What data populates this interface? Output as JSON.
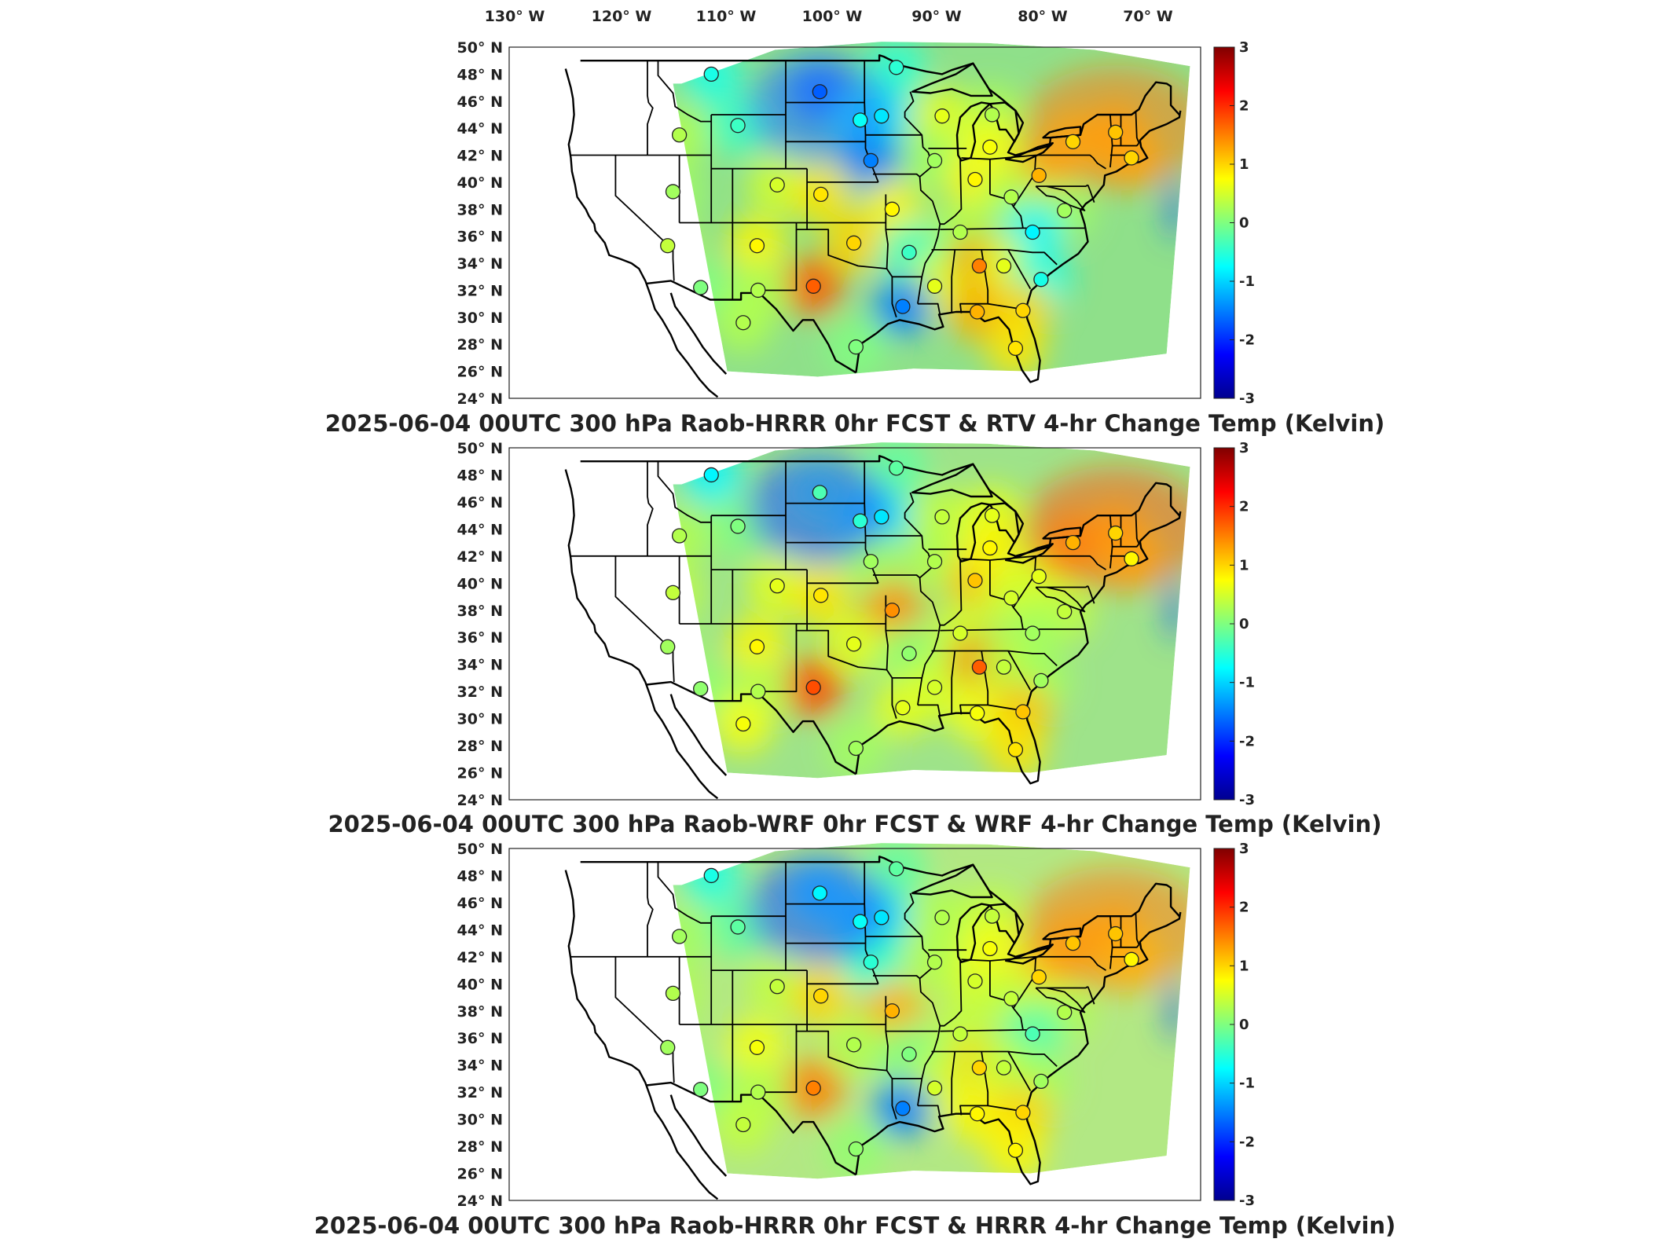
{
  "map": {
    "lon_labels": [
      "130° W",
      "120° W",
      "110° W",
      "100° W",
      "90° W",
      "80° W",
      "70° W"
    ],
    "lat_labels": [
      "50° N",
      "48° N",
      "46° N",
      "44° N",
      "42° N",
      "40° N",
      "38° N",
      "36° N",
      "34° N",
      "32° N",
      "30° N",
      "28° N",
      "26° N",
      "24° N"
    ],
    "extent": {
      "lon_min": -130,
      "lon_max": -65,
      "lat_min": 24,
      "lat_max": 50
    }
  },
  "colorbar": {
    "range": [
      -3,
      3
    ],
    "ticks": [
      "3",
      "2",
      "1",
      "0",
      "-1",
      "-2",
      "-3"
    ],
    "colormap": "jet",
    "colors": [
      "#00008f",
      "#0000ff",
      "#00ffff",
      "#ffff00",
      "#ff0000",
      "#800000"
    ]
  },
  "panels": [
    {
      "title": "2025-06-04 00UTC 300 hPa Raob-HRRR 0hr FCST & RTV 4-hr Change Temp (Kelvin)",
      "field_description_colors": {
        "west_background": "#8fe08a",
        "north_central_low": "#2a7bff",
        "northeast_high": "#ff7a1a"
      },
      "stations": [
        {
          "lon": -111.0,
          "lat": 48.0,
          "value": -0.6
        },
        {
          "lon": -100.8,
          "lat": 46.7,
          "value": -1.7
        },
        {
          "lon": -93.6,
          "lat": 48.5,
          "value": -0.5
        },
        {
          "lon": -97.0,
          "lat": 44.6,
          "value": -0.7
        },
        {
          "lon": -108.5,
          "lat": 44.2,
          "value": -0.4
        },
        {
          "lon": -114.0,
          "lat": 43.5,
          "value": 0.3
        },
        {
          "lon": -95.0,
          "lat": 44.9,
          "value": -0.9
        },
        {
          "lon": -89.3,
          "lat": 44.9,
          "value": 0.6
        },
        {
          "lon": -84.6,
          "lat": 45.0,
          "value": 0.3
        },
        {
          "lon": -96.0,
          "lat": 41.6,
          "value": -1.5
        },
        {
          "lon": -90.0,
          "lat": 41.6,
          "value": 0.2
        },
        {
          "lon": -86.2,
          "lat": 40.2,
          "value": 0.8
        },
        {
          "lon": -84.8,
          "lat": 42.6,
          "value": 0.7
        },
        {
          "lon": -80.2,
          "lat": 40.5,
          "value": 1.2
        },
        {
          "lon": -77.0,
          "lat": 43.0,
          "value": 1.0
        },
        {
          "lon": -73.0,
          "lat": 43.7,
          "value": 1.1
        },
        {
          "lon": -71.5,
          "lat": 41.8,
          "value": 1.0
        },
        {
          "lon": -114.6,
          "lat": 39.3,
          "value": 0.2
        },
        {
          "lon": -104.8,
          "lat": 39.8,
          "value": 0.5
        },
        {
          "lon": -100.7,
          "lat": 39.1,
          "value": 0.9
        },
        {
          "lon": -94.0,
          "lat": 38.0,
          "value": 0.8
        },
        {
          "lon": -82.8,
          "lat": 38.9,
          "value": 0.3
        },
        {
          "lon": -77.8,
          "lat": 37.9,
          "value": 0.2
        },
        {
          "lon": -80.8,
          "lat": 36.3,
          "value": -0.8
        },
        {
          "lon": -87.6,
          "lat": 36.3,
          "value": 0.3
        },
        {
          "lon": -115.1,
          "lat": 35.3,
          "value": 0.4
        },
        {
          "lon": -106.7,
          "lat": 35.3,
          "value": 0.8
        },
        {
          "lon": -97.6,
          "lat": 35.5,
          "value": 1.0
        },
        {
          "lon": -92.4,
          "lat": 34.8,
          "value": -0.4
        },
        {
          "lon": -85.8,
          "lat": 33.8,
          "value": 1.5
        },
        {
          "lon": -83.5,
          "lat": 33.8,
          "value": 0.6
        },
        {
          "lon": -80.0,
          "lat": 32.8,
          "value": -0.6
        },
        {
          "lon": -101.4,
          "lat": 32.3,
          "value": 1.7
        },
        {
          "lon": -106.6,
          "lat": 32.0,
          "value": 0.3
        },
        {
          "lon": -112.0,
          "lat": 32.2,
          "value": 0.0
        },
        {
          "lon": -90.0,
          "lat": 32.3,
          "value": 0.6
        },
        {
          "lon": -93.0,
          "lat": 30.8,
          "value": -1.5
        },
        {
          "lon": -86.0,
          "lat": 30.4,
          "value": 1.2
        },
        {
          "lon": -81.7,
          "lat": 30.5,
          "value": 1.0
        },
        {
          "lon": -108.0,
          "lat": 29.6,
          "value": 0.3
        },
        {
          "lon": -97.4,
          "lat": 27.8,
          "value": 0.0
        },
        {
          "lon": -82.4,
          "lat": 27.7,
          "value": 0.9
        }
      ]
    },
    {
      "title": "2025-06-04 00UTC 300 hPa Raob-WRF 0hr FCST & WRF 4-hr Change Temp (Kelvin)",
      "field_description_colors": {
        "west_background": "#9ee38a",
        "north_central_low": "#1f57ff",
        "northeast_high": "#ff5a12"
      },
      "stations": [
        {
          "lon": -111.0,
          "lat": 48.0,
          "value": -0.8
        },
        {
          "lon": -100.8,
          "lat": 46.7,
          "value": -0.3
        },
        {
          "lon": -93.6,
          "lat": 48.5,
          "value": -0.2
        },
        {
          "lon": -97.0,
          "lat": 44.6,
          "value": -0.5
        },
        {
          "lon": -108.5,
          "lat": 44.2,
          "value": 0.0
        },
        {
          "lon": -114.0,
          "lat": 43.5,
          "value": 0.3
        },
        {
          "lon": -95.0,
          "lat": 44.9,
          "value": -0.9
        },
        {
          "lon": -89.3,
          "lat": 44.9,
          "value": 0.4
        },
        {
          "lon": -84.6,
          "lat": 45.0,
          "value": 0.6
        },
        {
          "lon": -96.0,
          "lat": 41.6,
          "value": 0.2
        },
        {
          "lon": -90.0,
          "lat": 41.6,
          "value": 0.3
        },
        {
          "lon": -86.2,
          "lat": 40.2,
          "value": 1.1
        },
        {
          "lon": -84.8,
          "lat": 42.6,
          "value": 0.8
        },
        {
          "lon": -80.2,
          "lat": 40.5,
          "value": 0.6
        },
        {
          "lon": -77.0,
          "lat": 43.0,
          "value": 1.2
        },
        {
          "lon": -73.0,
          "lat": 43.7,
          "value": 1.0
        },
        {
          "lon": -71.5,
          "lat": 41.8,
          "value": 0.8
        },
        {
          "lon": -114.6,
          "lat": 39.3,
          "value": 0.4
        },
        {
          "lon": -104.8,
          "lat": 39.8,
          "value": 0.6
        },
        {
          "lon": -100.7,
          "lat": 39.1,
          "value": 0.9
        },
        {
          "lon": -94.0,
          "lat": 38.0,
          "value": 1.4
        },
        {
          "lon": -82.8,
          "lat": 38.9,
          "value": 0.5
        },
        {
          "lon": -77.8,
          "lat": 37.9,
          "value": 0.4
        },
        {
          "lon": -80.8,
          "lat": 36.3,
          "value": 0.2
        },
        {
          "lon": -87.6,
          "lat": 36.3,
          "value": 0.5
        },
        {
          "lon": -115.1,
          "lat": 35.3,
          "value": 0.2
        },
        {
          "lon": -106.7,
          "lat": 35.3,
          "value": 0.8
        },
        {
          "lon": -97.6,
          "lat": 35.5,
          "value": 0.6
        },
        {
          "lon": -92.4,
          "lat": 34.8,
          "value": 0.1
        },
        {
          "lon": -85.8,
          "lat": 33.8,
          "value": 1.7
        },
        {
          "lon": -83.5,
          "lat": 33.8,
          "value": 0.4
        },
        {
          "lon": -80.0,
          "lat": 32.8,
          "value": 0.2
        },
        {
          "lon": -101.4,
          "lat": 32.3,
          "value": 1.8
        },
        {
          "lon": -106.6,
          "lat": 32.0,
          "value": 0.3
        },
        {
          "lon": -112.0,
          "lat": 32.2,
          "value": 0.1
        },
        {
          "lon": -90.0,
          "lat": 32.3,
          "value": 0.5
        },
        {
          "lon": -93.0,
          "lat": 30.8,
          "value": 0.6
        },
        {
          "lon": -86.0,
          "lat": 30.4,
          "value": 0.7
        },
        {
          "lon": -81.7,
          "lat": 30.5,
          "value": 1.1
        },
        {
          "lon": -108.0,
          "lat": 29.6,
          "value": 0.7
        },
        {
          "lon": -97.4,
          "lat": 27.8,
          "value": 0.2
        },
        {
          "lon": -82.4,
          "lat": 27.7,
          "value": 0.9
        }
      ]
    },
    {
      "title": "2025-06-04 00UTC 300 hPa Raob-HRRR 0hr FCST & HRRR 4-hr Change Temp (Kelvin)",
      "field_description_colors": {
        "west_background": "#b2e884",
        "north_central_low": "#1f57ff",
        "northeast_high": "#ff7a1a"
      },
      "stations": [
        {
          "lon": -111.0,
          "lat": 48.0,
          "value": -0.6
        },
        {
          "lon": -100.8,
          "lat": 46.7,
          "value": -0.8
        },
        {
          "lon": -93.6,
          "lat": 48.5,
          "value": -0.2
        },
        {
          "lon": -97.0,
          "lat": 44.6,
          "value": -0.7
        },
        {
          "lon": -108.5,
          "lat": 44.2,
          "value": -0.2
        },
        {
          "lon": -114.0,
          "lat": 43.5,
          "value": 0.2
        },
        {
          "lon": -95.0,
          "lat": 44.9,
          "value": -0.9
        },
        {
          "lon": -89.3,
          "lat": 44.9,
          "value": 0.3
        },
        {
          "lon": -84.6,
          "lat": 45.0,
          "value": 0.4
        },
        {
          "lon": -96.0,
          "lat": 41.6,
          "value": -0.5
        },
        {
          "lon": -90.0,
          "lat": 41.6,
          "value": 0.3
        },
        {
          "lon": -86.2,
          "lat": 40.2,
          "value": 0.5
        },
        {
          "lon": -84.8,
          "lat": 42.6,
          "value": 0.7
        },
        {
          "lon": -80.2,
          "lat": 40.5,
          "value": 1.0
        },
        {
          "lon": -77.0,
          "lat": 43.0,
          "value": 1.1
        },
        {
          "lon": -73.0,
          "lat": 43.7,
          "value": 1.1
        },
        {
          "lon": -71.5,
          "lat": 41.8,
          "value": 0.8
        },
        {
          "lon": -114.6,
          "lat": 39.3,
          "value": 0.3
        },
        {
          "lon": -104.8,
          "lat": 39.8,
          "value": 0.4
        },
        {
          "lon": -100.7,
          "lat": 39.1,
          "value": 1.0
        },
        {
          "lon": -94.0,
          "lat": 38.0,
          "value": 1.2
        },
        {
          "lon": -82.8,
          "lat": 38.9,
          "value": 0.4
        },
        {
          "lon": -77.8,
          "lat": 37.9,
          "value": 0.3
        },
        {
          "lon": -80.8,
          "lat": 36.3,
          "value": -0.3
        },
        {
          "lon": -87.6,
          "lat": 36.3,
          "value": 0.4
        },
        {
          "lon": -115.1,
          "lat": 35.3,
          "value": 0.2
        },
        {
          "lon": -106.7,
          "lat": 35.3,
          "value": 0.7
        },
        {
          "lon": -97.6,
          "lat": 35.5,
          "value": 0.3
        },
        {
          "lon": -92.4,
          "lat": 34.8,
          "value": 0.0
        },
        {
          "lon": -85.8,
          "lat": 33.8,
          "value": 1.0
        },
        {
          "lon": -83.5,
          "lat": 33.8,
          "value": 0.4
        },
        {
          "lon": -80.0,
          "lat": 32.8,
          "value": 0.2
        },
        {
          "lon": -101.4,
          "lat": 32.3,
          "value": 1.5
        },
        {
          "lon": -106.6,
          "lat": 32.0,
          "value": 0.3
        },
        {
          "lon": -112.0,
          "lat": 32.2,
          "value": 0.0
        },
        {
          "lon": -90.0,
          "lat": 32.3,
          "value": 0.5
        },
        {
          "lon": -93.0,
          "lat": 30.8,
          "value": -1.5
        },
        {
          "lon": -86.0,
          "lat": 30.4,
          "value": 0.8
        },
        {
          "lon": -81.7,
          "lat": 30.5,
          "value": 1.0
        },
        {
          "lon": -108.0,
          "lat": 29.6,
          "value": 0.4
        },
        {
          "lon": -97.4,
          "lat": 27.8,
          "value": 0.1
        },
        {
          "lon": -82.4,
          "lat": 27.7,
          "value": 0.8
        }
      ]
    }
  ]
}
